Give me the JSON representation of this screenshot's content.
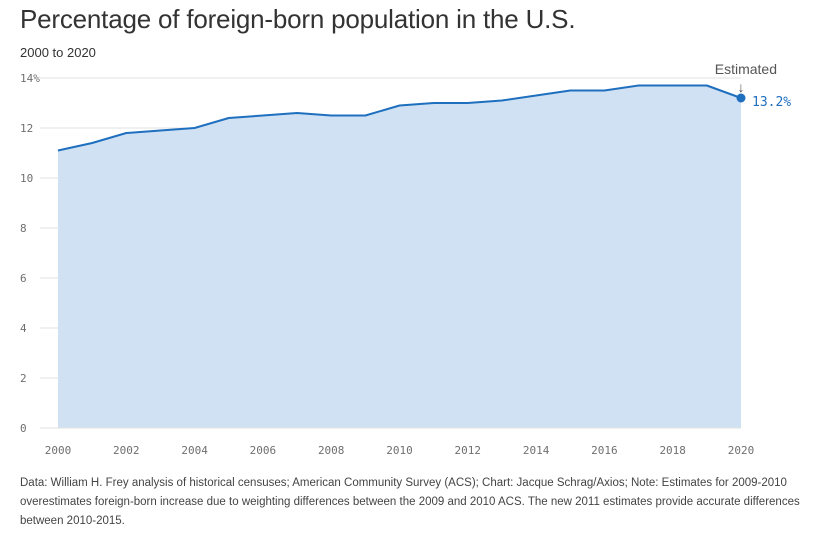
{
  "header": {
    "title": "Percentage of foreign-born population in the U.S.",
    "subtitle": "2000 to 2020"
  },
  "footnote": "Data: William H. Frey analysis of historical censuses; American Community Survey (ACS); Chart: Jacque Schrag/Axios; Note: Estimates for 2009-2010 overestimates foreign-born increase due to weighting differences between the 2009 and 2010 ACS. The new 2011 estimates provide accurate differences between 2010-2015.",
  "colors": {
    "line": "#1f6fbf",
    "area": "#cfe1f3",
    "grid": "#e2e2e2"
  },
  "chart_data": {
    "type": "area",
    "x": [
      2000,
      2001,
      2002,
      2003,
      2004,
      2005,
      2006,
      2007,
      2008,
      2009,
      2010,
      2011,
      2012,
      2013,
      2014,
      2015,
      2016,
      2017,
      2018,
      2019,
      2020
    ],
    "values": [
      11.1,
      11.4,
      11.8,
      11.9,
      12.0,
      12.4,
      12.5,
      12.6,
      12.5,
      12.5,
      12.9,
      13.0,
      13.0,
      13.1,
      13.3,
      13.5,
      13.5,
      13.7,
      13.7,
      13.7,
      13.2
    ],
    "xticks": [
      "2000",
      "2002",
      "2004",
      "2006",
      "2008",
      "2010",
      "2012",
      "2014",
      "2016",
      "2018",
      "2020"
    ],
    "yticks": [
      "0",
      "2",
      "4",
      "6",
      "8",
      "10",
      "12",
      "14%"
    ],
    "ylim": [
      0,
      14
    ],
    "xlim": [
      2000,
      2020
    ],
    "annotation": {
      "label": "Estimated",
      "arrow": "↓",
      "x": 2020
    },
    "end_label": "13.2%",
    "grid": true
  }
}
